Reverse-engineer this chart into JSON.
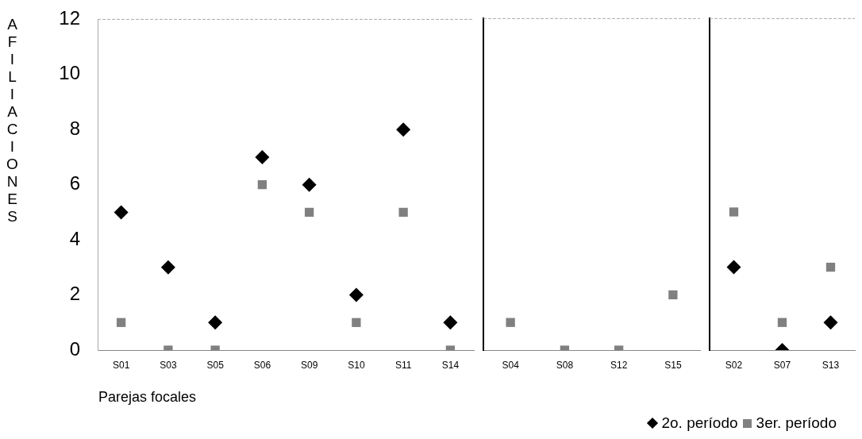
{
  "chart_data": [
    {
      "type": "scatter",
      "ylabel": "AFILIACIONES",
      "xlabel": "Parejas focales",
      "categories": [
        "S01",
        "S03",
        "S05",
        "S06",
        "S09",
        "S10",
        "S11",
        "S14"
      ],
      "series": [
        {
          "color": "#000000",
          "marker": "diamond",
          "values": [
            5,
            3,
            1,
            7,
            6,
            2,
            8,
            1
          ]
        },
        {
          "color": "#808080",
          "marker": "square",
          "values": [
            1,
            0,
            0,
            6,
            5,
            1,
            5,
            0
          ]
        }
      ],
      "ylim": [
        0,
        12
      ],
      "yticks": [
        0,
        2,
        4,
        6,
        8,
        10,
        12
      ],
      "grid": false
    },
    {
      "type": "scatter",
      "categories": [
        "S04",
        "S08",
        "S12",
        "S15"
      ],
      "series": [
        {
          "color": "#000000",
          "marker": "diamond",
          "values": [
            null,
            null,
            null,
            null
          ]
        },
        {
          "color": "#808080",
          "marker": "square",
          "values": [
            1,
            0,
            0,
            2
          ]
        }
      ],
      "ylim": [
        0,
        12
      ],
      "yticks": [
        0,
        2,
        4,
        6,
        8,
        10,
        12
      ],
      "tick_labels": "x",
      "grid": false
    },
    {
      "type": "scatter",
      "categories": [
        "S02",
        "S07",
        "S13"
      ],
      "series": [
        {
          "name": "2o. período",
          "color": "#000000",
          "marker": "diamond",
          "values": [
            3,
            0,
            1
          ]
        },
        {
          "name": "3er. período",
          "color": "#808080",
          "marker": "square",
          "values": [
            5,
            1,
            3
          ]
        }
      ],
      "ylim": [
        0,
        12
      ],
      "yticks": [
        0,
        2,
        4,
        6,
        8,
        10,
        12
      ],
      "tick_labels": "x",
      "grid": false,
      "legend": "bottom"
    }
  ]
}
